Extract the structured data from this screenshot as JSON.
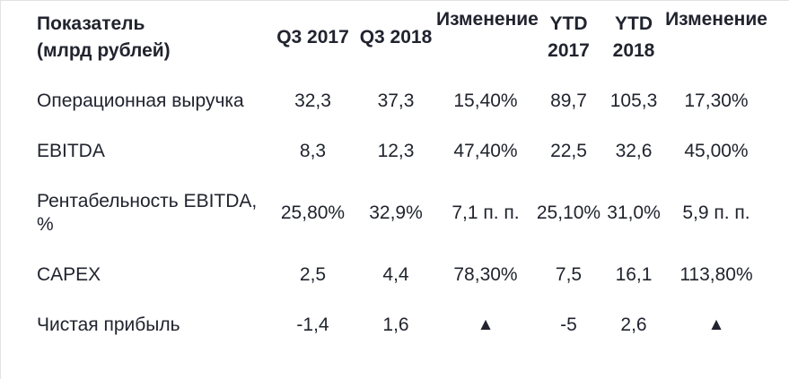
{
  "colors": {
    "text": "#21242e",
    "background": "#ffffff",
    "frame_border": "#e3e3e3"
  },
  "table": {
    "header": {
      "indicator": "Показатель\n(млрд рублей)",
      "q3_2017": "Q3 2017",
      "q3_2018": "Q3 2018",
      "change_quarter": "Изменение",
      "ytd_2017": "YTD\n2017",
      "ytd_2018": "YTD\n2018",
      "change_ytd": "Изменение"
    },
    "rows": [
      {
        "label": "Операционная выручка",
        "q3_2017": "32,3",
        "q3_2018": "37,3",
        "change_quarter": "15,40%",
        "ytd_2017": "89,7",
        "ytd_2018": "105,3",
        "change_ytd": "17,30%"
      },
      {
        "label": "EBITDA",
        "q3_2017": "8,3",
        "q3_2018": "12,3",
        "change_quarter": "47,40%",
        "ytd_2017": "22,5",
        "ytd_2018": "32,6",
        "change_ytd": "45,00%"
      },
      {
        "label": "Рентабельность EBITDA,\n%",
        "q3_2017": "25,80%",
        "q3_2018": "32,9%",
        "change_quarter": "7,1 п. п.",
        "ytd_2017": "25,10%",
        "ytd_2018": "31,0%",
        "change_ytd": "5,9 п. п."
      },
      {
        "label": "CAPEX",
        "q3_2017": "2,5",
        "q3_2018": "4,4",
        "change_quarter": "78,30%",
        "ytd_2017": "7,5",
        "ytd_2018": "16,1",
        "change_ytd": "113,80%"
      },
      {
        "label": "Чистая прибыль",
        "q3_2017": "-1,4",
        "q3_2018": "1,6",
        "change_quarter": "▲",
        "ytd_2017": "-5",
        "ytd_2018": "2,6",
        "change_ytd": "▲"
      }
    ]
  }
}
